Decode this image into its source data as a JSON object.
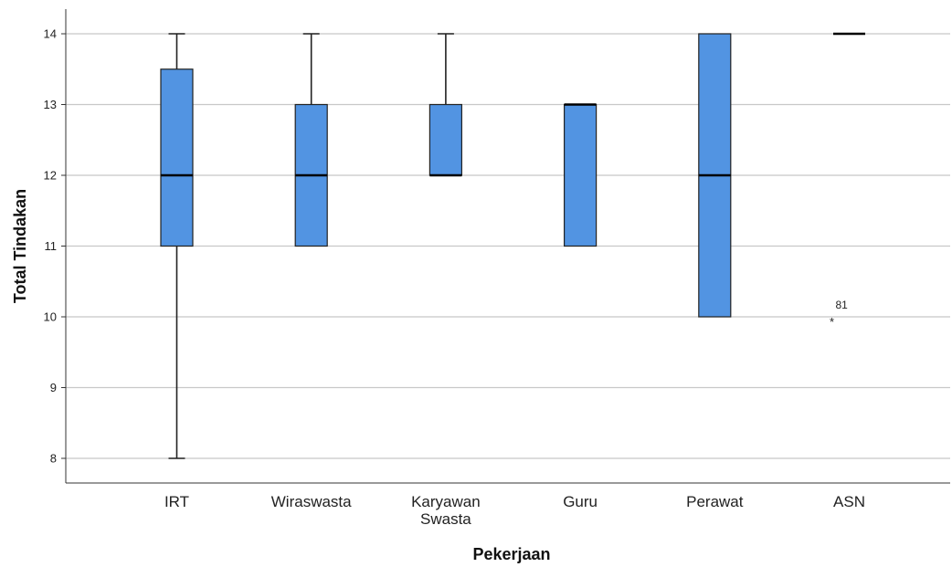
{
  "chart_data": {
    "type": "boxplot",
    "xlabel": "Pekerjaan",
    "ylabel": "Total Tindakan",
    "ylim": [
      7.65,
      14.35
    ],
    "yticks": [
      8,
      9,
      10,
      11,
      12,
      13,
      14
    ],
    "grid": "horizontal",
    "colors": {
      "box_fill": "#5294e2",
      "box_stroke": "#222222",
      "grid": "#c8c8c8",
      "axis": "#333333"
    },
    "categories": [
      {
        "label": [
          "IRT"
        ],
        "min": 8,
        "q1": 11,
        "median": 12,
        "q3": 13.5,
        "max": 14
      },
      {
        "label": [
          "Wiraswasta"
        ],
        "min": 11,
        "q1": 11,
        "median": 12,
        "q3": 13,
        "max": 14
      },
      {
        "label": [
          "Karyawan",
          "Swasta"
        ],
        "min": 12,
        "q1": 12,
        "median": 12,
        "q3": 13,
        "max": 14
      },
      {
        "label": [
          "Guru"
        ],
        "min": 11,
        "q1": 11,
        "median": 13,
        "q3": 13,
        "max": 13
      },
      {
        "label": [
          "Perawat"
        ],
        "min": 10,
        "q1": 10,
        "median": 12,
        "q3": 14,
        "max": 14
      },
      {
        "label": [
          "ASN"
        ],
        "min": 14,
        "q1": 14,
        "median": 14,
        "q3": 14,
        "max": 14
      }
    ],
    "outliers": [
      {
        "category": "ASN",
        "value": 10,
        "label": "81",
        "marker": "*"
      }
    ]
  }
}
